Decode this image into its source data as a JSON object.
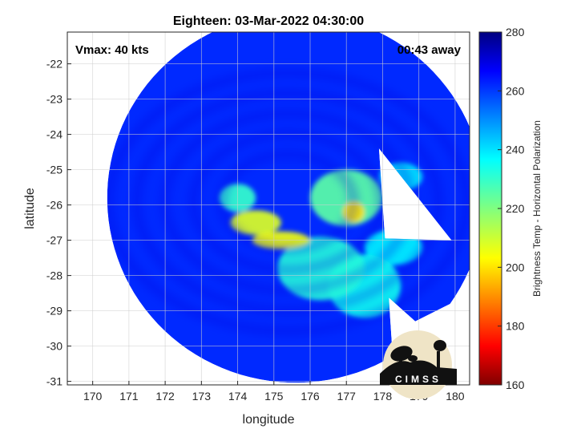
{
  "chart_data": {
    "type": "heatmap",
    "title": "Eighteen: 03-Mar-2022 04:30:00",
    "xlabel": "longitude",
    "ylabel": "latitude",
    "xlim": [
      169.3,
      180.4
    ],
    "ylim": [
      -31.1,
      -21.1
    ],
    "xticks": [
      170,
      171,
      172,
      173,
      174,
      175,
      176,
      177,
      178,
      179,
      180
    ],
    "yticks": [
      -22,
      -23,
      -24,
      -25,
      -26,
      -27,
      -28,
      -29,
      -30,
      -31
    ],
    "grid": true,
    "annotation_left": "Vmax: 40 kts",
    "annotation_right": "00:43 away",
    "colorbar": {
      "label": "Brightness Temp - Horizontal Polarization",
      "range": [
        160,
        280
      ],
      "ticks": [
        280,
        260,
        240,
        220,
        200,
        180,
        160
      ],
      "colormap": "jet"
    },
    "swath": {
      "center_lon": 175.6,
      "center_lat": -25.8,
      "radius_deg": 5.2,
      "background_temp": 262
    },
    "features": [
      {
        "lon": 174.5,
        "lat": -26.5,
        "temp": 208,
        "extent_lon": 0.7,
        "extent_lat": 0.35
      },
      {
        "lon": 175.2,
        "lat": -27.0,
        "temp": 205,
        "extent_lon": 0.8,
        "extent_lat": 0.25
      },
      {
        "lon": 177.2,
        "lat": -26.2,
        "temp": 200,
        "extent_lon": 0.3,
        "extent_lat": 0.3
      },
      {
        "lon": 177.0,
        "lat": -25.8,
        "temp": 225,
        "extent_lon": 1.0,
        "extent_lat": 0.8
      },
      {
        "lon": 176.3,
        "lat": -27.8,
        "temp": 232,
        "extent_lon": 1.2,
        "extent_lat": 0.9
      },
      {
        "lon": 177.5,
        "lat": -28.3,
        "temp": 235,
        "extent_lon": 1.0,
        "extent_lat": 0.9
      },
      {
        "lon": 174.0,
        "lat": -25.8,
        "temp": 230,
        "extent_lon": 0.5,
        "extent_lat": 0.4
      },
      {
        "lon": 178.5,
        "lat": -25.2,
        "temp": 240,
        "extent_lon": 0.6,
        "extent_lat": 0.4
      },
      {
        "lon": 178.3,
        "lat": -27.2,
        "temp": 238,
        "extent_lon": 0.8,
        "extent_lat": 0.5
      }
    ],
    "logo": {
      "text": "CIMSS"
    }
  }
}
